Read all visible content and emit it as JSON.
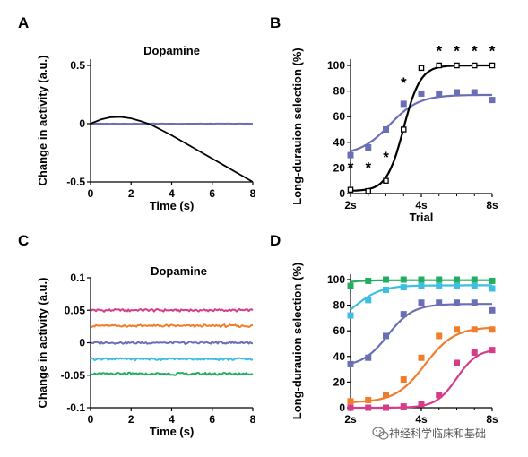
{
  "watermark": {
    "text": "神经科学临床和基础",
    "icon": "wechat-icon"
  },
  "chart_data": [
    {
      "panel": "A",
      "type": "line",
      "title": "Dopamine",
      "xlabel": "Time (s)",
      "ylabel": "Change in activity (a.u.)",
      "xlim": [
        0,
        8
      ],
      "ylim": [
        -0.55,
        0.55
      ],
      "xticks": [
        0,
        2,
        4,
        6,
        8
      ],
      "yticks": [
        -0.5,
        0,
        0.5
      ],
      "ytick_labels": [
        "-0.5",
        "0",
        "0.5"
      ],
      "series": [
        {
          "color": "#6a6fb5",
          "x": [
            0,
            1,
            2,
            3,
            4,
            5,
            6,
            7,
            8
          ],
          "y": [
            0,
            0,
            0,
            0,
            0,
            0,
            0,
            0,
            0
          ]
        },
        {
          "color": "#000000",
          "x": [
            0,
            0.5,
            1,
            1.5,
            2,
            2.5,
            3,
            4,
            5,
            6,
            7,
            8
          ],
          "y": [
            0,
            0.035,
            0.055,
            0.058,
            0.045,
            0.02,
            -0.01,
            -0.1,
            -0.2,
            -0.3,
            -0.4,
            -0.5
          ]
        }
      ]
    },
    {
      "panel": "B",
      "type": "line",
      "xlabel": "Trial",
      "ylabel": "Long-durauion selection (%)",
      "ylim": [
        0,
        105
      ],
      "xticks": [
        0,
        2,
        4
      ],
      "xtick_labels": [
        "2s",
        "4s",
        "8s"
      ],
      "yticks": [
        0,
        20,
        40,
        60,
        80,
        100
      ],
      "ytick_labels": [
        "0",
        "20",
        "40",
        "60",
        "80",
        "100"
      ],
      "xlim": [
        0,
        4
      ],
      "series": [
        {
          "color": "#6a6fb5",
          "marker": "square-filled",
          "x": [
            0,
            0.5,
            1,
            1.5,
            2,
            2.5,
            3,
            3.5,
            4
          ],
          "y": [
            30,
            36,
            50,
            70,
            78,
            78,
            79,
            79,
            73
          ],
          "fit_mid": 1.1,
          "fit_k": 2.4,
          "fit_lo": 30,
          "fit_hi": 77
        },
        {
          "color": "#000000",
          "marker": "square-open",
          "x": [
            0,
            0.5,
            1,
            1.5,
            2,
            2.5,
            3,
            3.5,
            4
          ],
          "y": [
            3,
            2,
            10,
            50,
            98,
            100,
            100,
            100,
            100
          ],
          "fit_mid": 1.5,
          "fit_k": 4.2,
          "fit_lo": 2,
          "fit_hi": 100
        }
      ],
      "annotations": [
        {
          "text": "*",
          "x": 0,
          "y": 22
        },
        {
          "text": "*",
          "x": 0.5,
          "y": 22
        },
        {
          "text": "*",
          "x": 1,
          "y": 30
        },
        {
          "text": "*",
          "x": 1.5,
          "y": 88
        },
        {
          "text": "*",
          "x": 2.5,
          "y": 113
        },
        {
          "text": "*",
          "x": 3,
          "y": 113
        },
        {
          "text": "*",
          "x": 3.5,
          "y": 113
        },
        {
          "text": "*",
          "x": 4,
          "y": 113
        }
      ]
    },
    {
      "panel": "C",
      "type": "line",
      "title": "Dopamine",
      "xlabel": "Time (s)",
      "ylabel": "Change in activity (a.u.)",
      "xlim": [
        0,
        8
      ],
      "ylim": [
        -0.1,
        0.1
      ],
      "xticks": [
        0,
        2,
        4,
        6,
        8
      ],
      "yticks": [
        -0.1,
        -0.05,
        0,
        0.05,
        0.1
      ],
      "ytick_labels": [
        "-0.1",
        "-0.05",
        "0",
        "0.05",
        "0.1"
      ],
      "series": [
        {
          "color": "#d63c8a",
          "level": 0.05
        },
        {
          "color": "#f07d2c",
          "level": 0.026
        },
        {
          "color": "#6a6fb5",
          "level": 0.0
        },
        {
          "color": "#3dbfe0",
          "level": -0.025
        },
        {
          "color": "#23ad63",
          "level": -0.048
        }
      ]
    },
    {
      "panel": "D",
      "type": "line",
      "xlabel": "",
      "ylabel": "Long-durauion selection (%)",
      "ylim": [
        0,
        105
      ],
      "xlim": [
        0,
        4
      ],
      "xticks": [
        0,
        2,
        4
      ],
      "xtick_labels": [
        "2s",
        "4s",
        "8s"
      ],
      "yticks": [
        0,
        20,
        40,
        60,
        80,
        100
      ],
      "ytick_labels": [
        "0",
        "20",
        "40",
        "60",
        "80",
        "100"
      ],
      "series": [
        {
          "color": "#23ad63",
          "x": [
            0,
            0.5,
            1,
            1.5,
            2,
            2.5,
            3,
            3.5,
            4
          ],
          "y": [
            95,
            99,
            100,
            100,
            100,
            100,
            100,
            100,
            99
          ],
          "fit_mid": -0.6,
          "fit_k": 3,
          "fit_lo": 90,
          "fit_hi": 99.5
        },
        {
          "color": "#3dbfe0",
          "x": [
            0,
            0.5,
            1,
            1.5,
            2,
            2.5,
            3,
            3.5,
            4
          ],
          "y": [
            72,
            84,
            92,
            94,
            95,
            95,
            95,
            95,
            93
          ],
          "fit_mid": 0.1,
          "fit_k": 2.6,
          "fit_lo": 62,
          "fit_hi": 95.5
        },
        {
          "color": "#6a6fb5",
          "x": [
            0,
            0.5,
            1,
            1.5,
            2,
            2.5,
            3,
            3.5,
            4
          ],
          "y": [
            34,
            39,
            56,
            73,
            82,
            82,
            82,
            82,
            76
          ],
          "fit_mid": 1.05,
          "fit_k": 2.8,
          "fit_lo": 32,
          "fit_hi": 81
        }
      ],
      "series_extra": [
        {
          "color": "#f07d2c",
          "x": [
            0,
            0.5,
            1,
            1.5,
            2,
            2.5,
            3,
            3.5,
            4
          ],
          "y": [
            5,
            6,
            10,
            22,
            39,
            56,
            61,
            61,
            61
          ],
          "fit_mid": 2.1,
          "fit_k": 2.4,
          "fit_lo": 4,
          "fit_hi": 63
        },
        {
          "color": "#d63c8a",
          "x": [
            0,
            0.5,
            1,
            1.5,
            2,
            2.5,
            3,
            3.5,
            4
          ],
          "y": [
            0,
            0,
            0,
            1,
            3,
            10,
            35,
            43,
            45
          ],
          "fit_mid": 3.0,
          "fit_k": 3.4,
          "fit_lo": 0,
          "fit_hi": 46
        }
      ]
    }
  ]
}
